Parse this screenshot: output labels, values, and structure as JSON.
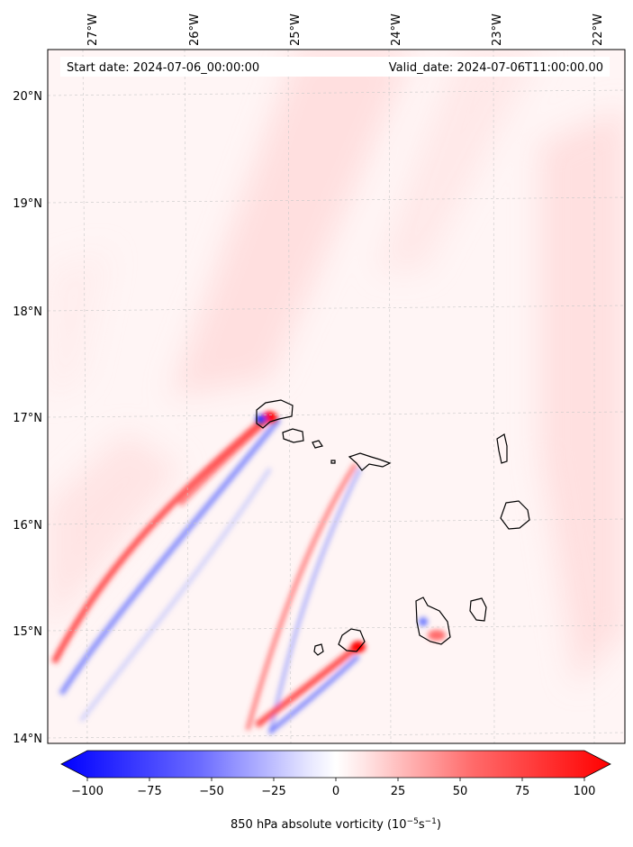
{
  "header": {
    "start_date": "Start date: 2024-07-06_00:00:00",
    "valid_date": "Valid_date: 2024-07-06T11:00:00.00"
  },
  "axes": {
    "lon_ticks": [
      "27°W",
      "26°W",
      "25°W",
      "24°W",
      "23°W",
      "22°W"
    ],
    "lat_ticks": [
      "20°N",
      "19°N",
      "18°N",
      "17°N",
      "16°N",
      "15°N",
      "14°N"
    ],
    "lon_values": [
      -27,
      -26,
      -25,
      -24,
      -23,
      -22
    ],
    "lat_values": [
      20,
      19,
      18,
      17,
      16,
      15,
      14
    ],
    "lon_range": [
      -27.35,
      -21.75
    ],
    "lat_range": [
      13.95,
      20.45
    ],
    "grid": true
  },
  "colorbar": {
    "ticks": [
      "−100",
      "−75",
      "−50",
      "−25",
      "0",
      "25",
      "50",
      "75",
      "100"
    ],
    "tick_values": [
      -100,
      -75,
      -50,
      -25,
      0,
      25,
      50,
      75,
      100
    ],
    "range": [
      -100,
      100
    ],
    "label_main": "850 hPa absolute vorticity (10",
    "label_exp1": "−5",
    "label_mid": "s",
    "label_exp2": "−1",
    "label_end": ")",
    "cmap_low": "#0000ff",
    "cmap_mid": "#ffffff",
    "cmap_high": "#ff0000",
    "extend": "both"
  },
  "colors": {
    "background_tint": "#fff4f4",
    "band_light": "#ffdcdc",
    "streak_red": "#ff3030",
    "streak_blue": "#4b5cff",
    "coast": "#000000"
  }
}
